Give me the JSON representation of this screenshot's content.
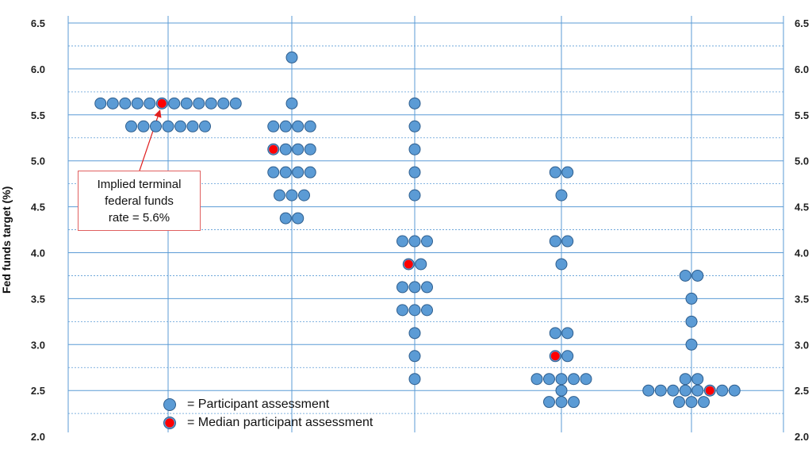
{
  "chart_data": {
    "type": "scatter",
    "ylabel": "Fed funds target (%)",
    "ylim": [
      2.0,
      6.5
    ],
    "yticks": [
      "2.0",
      "2.5",
      "3.0",
      "3.5",
      "4.0",
      "4.5",
      "5.0",
      "5.5",
      "6.0",
      "6.5"
    ],
    "grid": true,
    "colors": {
      "participant": "#5b9bd5",
      "median": "#ff0000",
      "edge": "#2e5e8e",
      "grid": "#5b9bd5"
    },
    "columns": [
      {
        "id": "col1",
        "dots": [
          {
            "y": 5.625,
            "count": 12
          },
          {
            "y": 5.375,
            "count": 7
          }
        ],
        "median": {
          "y": 5.625,
          "index": 5
        }
      },
      {
        "id": "col2",
        "dots": [
          {
            "y": 6.125,
            "count": 1
          },
          {
            "y": 5.625,
            "count": 1
          },
          {
            "y": 5.375,
            "count": 4
          },
          {
            "y": 5.125,
            "count": 4
          },
          {
            "y": 4.875,
            "count": 4
          },
          {
            "y": 4.625,
            "count": 3
          },
          {
            "y": 4.375,
            "count": 2
          }
        ],
        "median": {
          "y": 5.125,
          "index": 0
        }
      },
      {
        "id": "col3",
        "dots": [
          {
            "y": 5.625,
            "count": 1
          },
          {
            "y": 5.375,
            "count": 1
          },
          {
            "y": 5.125,
            "count": 1
          },
          {
            "y": 4.875,
            "count": 1
          },
          {
            "y": 4.625,
            "count": 1
          },
          {
            "y": 4.125,
            "count": 3
          },
          {
            "y": 3.875,
            "count": 2
          },
          {
            "y": 3.625,
            "count": 3
          },
          {
            "y": 3.375,
            "count": 3
          },
          {
            "y": 3.125,
            "count": 1
          },
          {
            "y": 2.875,
            "count": 1
          },
          {
            "y": 2.625,
            "count": 1
          }
        ],
        "median": {
          "y": 3.875,
          "index": 0
        }
      },
      {
        "id": "col4",
        "dots": [
          {
            "y": 4.875,
            "count": 2
          },
          {
            "y": 4.625,
            "count": 1
          },
          {
            "y": 4.125,
            "count": 2
          },
          {
            "y": 3.875,
            "count": 1
          },
          {
            "y": 3.125,
            "count": 2
          },
          {
            "y": 2.875,
            "count": 2
          },
          {
            "y": 2.625,
            "count": 5
          },
          {
            "y": 2.5,
            "count": 1
          },
          {
            "y": 2.375,
            "count": 3
          }
        ],
        "median": {
          "y": 2.875,
          "index": 0
        }
      },
      {
        "id": "col5",
        "dots": [
          {
            "y": 3.75,
            "count": 2
          },
          {
            "y": 3.5,
            "count": 1
          },
          {
            "y": 3.25,
            "count": 1
          },
          {
            "y": 3.0,
            "count": 1
          },
          {
            "y": 2.625,
            "count": 2
          },
          {
            "y": 2.5,
            "count": 8
          },
          {
            "y": 2.375,
            "count": 3
          }
        ],
        "median": {
          "y": 2.5,
          "index": 5
        }
      }
    ],
    "annotation": {
      "lines": [
        "Implied terminal",
        "federal funds",
        "rate = 5.6%"
      ],
      "target": "col1-median"
    },
    "legend": [
      {
        "label": "= Participant assessment",
        "kind": "participant"
      },
      {
        "label": "= Median participant assessment",
        "kind": "median"
      }
    ]
  }
}
